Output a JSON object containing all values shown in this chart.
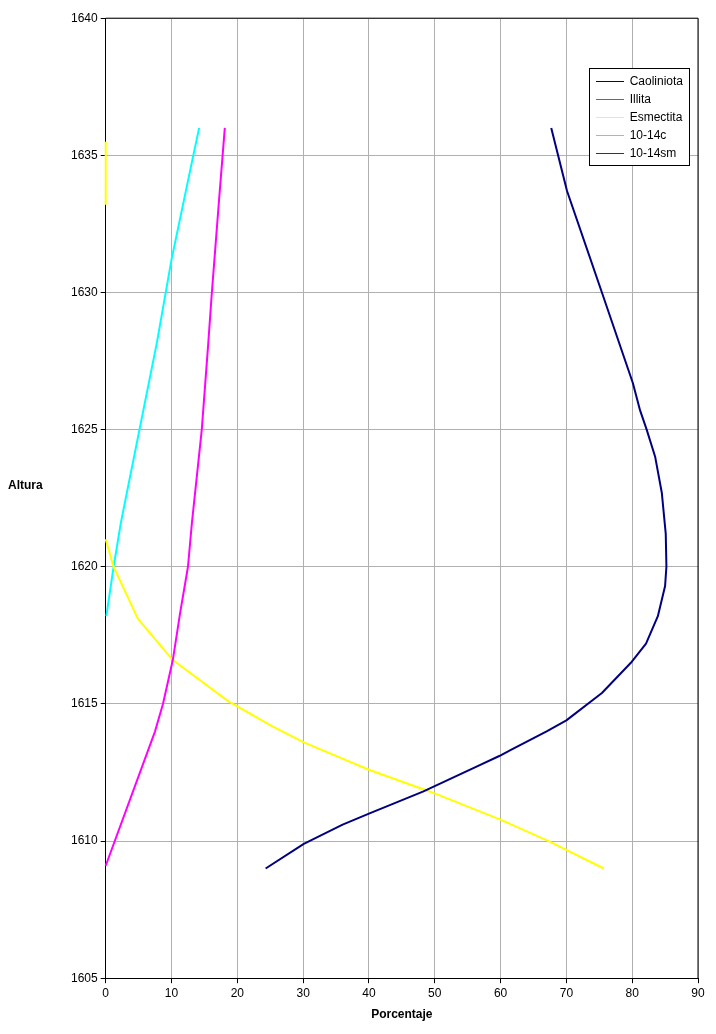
{
  "chart_data": {
    "type": "line",
    "xlabel": "Porcentaje",
    "ylabel": "Altura",
    "xlim": [
      0,
      90
    ],
    "xticks": [
      0,
      10,
      20,
      30,
      40,
      50,
      60,
      70,
      80,
      90
    ],
    "ylim": [
      1605,
      1640
    ],
    "yticks": [
      1605,
      1610,
      1615,
      1620,
      1625,
      1630,
      1635,
      1640
    ],
    "grid": true,
    "legend": "top right",
    "marker": "none",
    "line_style": "solid",
    "series": [
      {
        "name": "Caoliniota",
        "color": "#000080",
        "x": [
          24.3,
          30.1,
          36,
          40,
          48.2,
          59.8,
          67,
          70,
          75.4,
          79.8,
          82.1,
          83.9,
          85,
          85.2,
          85.1,
          84.5,
          83.5,
          82.2,
          81.2,
          80.1,
          75.4,
          70.1,
          67.7
        ],
        "values": [
          1609,
          1609.9,
          1610.6,
          1611,
          1611.8,
          1613.1,
          1614,
          1614.4,
          1615.4,
          1616.5,
          1617.2,
          1618.2,
          1619.3,
          1620,
          1621.2,
          1622.7,
          1624,
          1625,
          1625.7,
          1626.7,
          1630,
          1633.7,
          1636
        ]
      },
      {
        "name": "Illita",
        "color": "#ff00ff",
        "x": [
          0,
          7.5,
          8.7,
          10.2,
          11.3,
          12.5,
          13.1,
          14.6,
          15.6,
          16.1,
          17.2,
          18.1
        ],
        "values": [
          1609.1,
          1614,
          1615,
          1616.6,
          1618.3,
          1620,
          1621.6,
          1625,
          1628.2,
          1629.9,
          1633.3,
          1636
        ]
      },
      {
        "name": "Esmectita",
        "color": "#ffff00",
        "x": [
          75.7,
          67.3,
          59.8,
          49.3,
          40,
          30.1,
          25.2,
          18.6,
          10.2,
          4.9,
          1.2,
          0,
          null,
          0,
          0
        ],
        "values": [
          1609,
          1610,
          1610.8,
          1611.8,
          1612.6,
          1613.6,
          1614.2,
          1615.1,
          1616.6,
          1618.1,
          1620,
          1621,
          null,
          1633.2,
          1635.5
        ]
      },
      {
        "name": "10-14c",
        "color": "#00ffff",
        "x": [
          0.1,
          1.2,
          2.3,
          7.8,
          10,
          13.4,
          14.2
        ],
        "values": [
          1618.2,
          1620,
          1621.6,
          1628.2,
          1631.2,
          1635.1,
          1636
        ]
      },
      {
        "name": "10-14sm",
        "color": "#800080"
      }
    ]
  }
}
